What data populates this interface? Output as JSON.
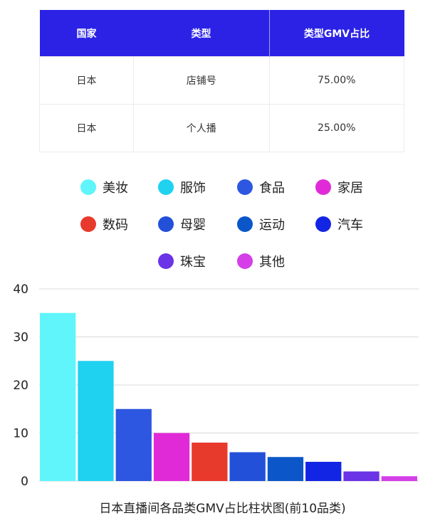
{
  "table": {
    "headers": [
      "国家",
      "类型",
      "类型GMV占比"
    ],
    "rows": [
      [
        "日本",
        "店铺号",
        "75.00%"
      ],
      [
        "日本",
        "个人播",
        "25.00%"
      ]
    ]
  },
  "colors": {
    "header_bg": "#2b22e6",
    "美妆": "#5ff5fb",
    "服饰": "#1fd2f0",
    "食品": "#2d57e0",
    "家居": "#e12ad7",
    "数码": "#e83a2c",
    "母婴": "#2350d8",
    "运动": "#0b57c9",
    "汽车": "#1325e4",
    "珠宝": "#6b34e6",
    "其他": "#d43fe8"
  },
  "chart_data": {
    "type": "bar",
    "categories": [
      "美妆",
      "服饰",
      "食品",
      "家居",
      "数码",
      "母婴",
      "运动",
      "汽车",
      "珠宝",
      "其他"
    ],
    "values": [
      35,
      25,
      15,
      10,
      8,
      6,
      5,
      4,
      2,
      1
    ],
    "yticks": [
      "0",
      "10",
      "20",
      "30",
      "40"
    ],
    "ylim": [
      0,
      40
    ],
    "grid": true,
    "legend_position": "top",
    "title": "日本直播间各品类GMV占比柱状图(前10品类)"
  }
}
